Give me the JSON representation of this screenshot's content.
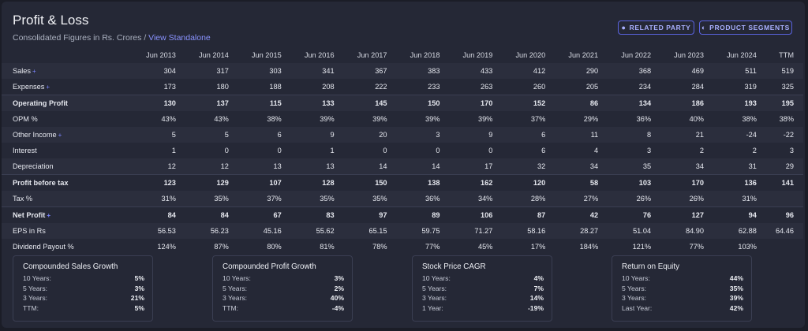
{
  "header": {
    "title": "Profit & Loss",
    "subtitle": "Consolidated Figures in Rs. Crores / ",
    "view_link": "View Standalone"
  },
  "buttons": {
    "related_party": "RELATED PARTY",
    "product_segments": "PRODUCT SEGMENTS"
  },
  "table": {
    "columns": [
      "Jun 2013",
      "Jun 2014",
      "Jun 2015",
      "Jun 2016",
      "Jun 2017",
      "Jun 2018",
      "Jun 2019",
      "Jun 2020",
      "Jun 2021",
      "Jun 2022",
      "Jun 2023",
      "Jun 2024",
      "TTM"
    ],
    "rows": [
      {
        "label": "Sales",
        "expandable": true,
        "bold": false,
        "values": [
          "304",
          "317",
          "303",
          "341",
          "367",
          "383",
          "433",
          "412",
          "290",
          "368",
          "469",
          "511",
          "519"
        ]
      },
      {
        "label": "Expenses",
        "expandable": true,
        "bold": false,
        "values": [
          "173",
          "180",
          "188",
          "208",
          "222",
          "233",
          "263",
          "260",
          "205",
          "234",
          "284",
          "319",
          "325"
        ]
      },
      {
        "label": "Operating Profit",
        "expandable": false,
        "bold": true,
        "values": [
          "130",
          "137",
          "115",
          "133",
          "145",
          "150",
          "170",
          "152",
          "86",
          "134",
          "186",
          "193",
          "195"
        ]
      },
      {
        "label": "OPM %",
        "expandable": false,
        "bold": false,
        "values": [
          "43%",
          "43%",
          "38%",
          "39%",
          "39%",
          "39%",
          "39%",
          "37%",
          "29%",
          "36%",
          "40%",
          "38%",
          "38%"
        ]
      },
      {
        "label": "Other Income",
        "expandable": true,
        "bold": false,
        "values": [
          "5",
          "5",
          "6",
          "9",
          "20",
          "3",
          "9",
          "6",
          "11",
          "8",
          "21",
          "-24",
          "-22"
        ]
      },
      {
        "label": "Interest",
        "expandable": false,
        "bold": false,
        "values": [
          "1",
          "0",
          "0",
          "1",
          "0",
          "0",
          "0",
          "6",
          "4",
          "3",
          "2",
          "2",
          "3"
        ]
      },
      {
        "label": "Depreciation",
        "expandable": false,
        "bold": false,
        "values": [
          "12",
          "12",
          "13",
          "13",
          "14",
          "14",
          "17",
          "32",
          "34",
          "35",
          "34",
          "31",
          "29"
        ]
      },
      {
        "label": "Profit before tax",
        "expandable": false,
        "bold": true,
        "values": [
          "123",
          "129",
          "107",
          "128",
          "150",
          "138",
          "162",
          "120",
          "58",
          "103",
          "170",
          "136",
          "141"
        ]
      },
      {
        "label": "Tax %",
        "expandable": false,
        "bold": false,
        "values": [
          "31%",
          "35%",
          "37%",
          "35%",
          "35%",
          "36%",
          "34%",
          "28%",
          "27%",
          "26%",
          "26%",
          "31%",
          ""
        ]
      },
      {
        "label": "Net Profit",
        "expandable": true,
        "bold": true,
        "values": [
          "84",
          "84",
          "67",
          "83",
          "97",
          "89",
          "106",
          "87",
          "42",
          "76",
          "127",
          "94",
          "96"
        ]
      },
      {
        "label": "EPS in Rs",
        "expandable": false,
        "bold": false,
        "values": [
          "56.53",
          "56.23",
          "45.16",
          "55.62",
          "65.15",
          "59.75",
          "71.27",
          "58.16",
          "28.27",
          "51.04",
          "84.90",
          "62.88",
          "64.46"
        ]
      },
      {
        "label": "Dividend Payout %",
        "expandable": false,
        "bold": false,
        "values": [
          "124%",
          "87%",
          "80%",
          "81%",
          "78%",
          "77%",
          "45%",
          "17%",
          "184%",
          "121%",
          "77%",
          "103%",
          ""
        ]
      }
    ]
  },
  "growth_boxes": [
    {
      "title": "Compounded Sales Growth",
      "rows": [
        {
          "k": "10 Years:",
          "v": "5%"
        },
        {
          "k": "5 Years:",
          "v": "3%"
        },
        {
          "k": "3 Years:",
          "v": "21%"
        },
        {
          "k": "TTM:",
          "v": "5%"
        }
      ]
    },
    {
      "title": "Compounded Profit Growth",
      "rows": [
        {
          "k": "10 Years:",
          "v": "3%"
        },
        {
          "k": "5 Years:",
          "v": "2%"
        },
        {
          "k": "3 Years:",
          "v": "40%"
        },
        {
          "k": "TTM:",
          "v": "-4%"
        }
      ]
    },
    {
      "title": "Stock Price CAGR",
      "rows": [
        {
          "k": "10 Years:",
          "v": "4%"
        },
        {
          "k": "5 Years:",
          "v": "7%"
        },
        {
          "k": "3 Years:",
          "v": "14%"
        },
        {
          "k": "1 Year:",
          "v": "-19%"
        }
      ]
    },
    {
      "title": "Return on Equity",
      "rows": [
        {
          "k": "10 Years:",
          "v": "44%"
        },
        {
          "k": "5 Years:",
          "v": "35%"
        },
        {
          "k": "3 Years:",
          "v": "39%"
        },
        {
          "k": "Last Year:",
          "v": "42%"
        }
      ]
    }
  ]
}
